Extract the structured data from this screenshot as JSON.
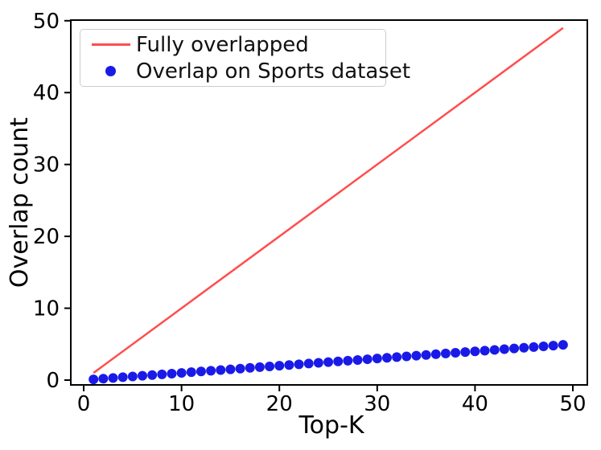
{
  "chart_data": {
    "type": "scatter",
    "title": "",
    "xlabel": "Top-K",
    "ylabel": "Overlap count",
    "xlim": [
      -1.32,
      51.48
    ],
    "ylim": [
      -0.67,
      50.09
    ],
    "xticks": [
      0,
      10,
      20,
      30,
      40,
      50
    ],
    "yticks": [
      0,
      10,
      20,
      30,
      40,
      50
    ],
    "grid": false,
    "legend_position": "upper left",
    "series": [
      {
        "name": "Fully overlapped",
        "type": "line",
        "color": "#FF4D4D",
        "x": [
          1,
          49
        ],
        "y": [
          1,
          49
        ]
      },
      {
        "name": "Overlap on Sports dataset",
        "type": "scatter",
        "color": "#1A1AE8",
        "x": [
          1,
          2,
          3,
          4,
          5,
          6,
          7,
          8,
          9,
          10,
          11,
          12,
          13,
          14,
          15,
          16,
          17,
          18,
          19,
          20,
          21,
          22,
          23,
          24,
          25,
          26,
          27,
          28,
          29,
          30,
          31,
          32,
          33,
          34,
          35,
          36,
          37,
          38,
          39,
          40,
          41,
          42,
          43,
          44,
          45,
          46,
          47,
          48,
          49
        ],
        "y": [
          0.1,
          0.2,
          0.3,
          0.4,
          0.5,
          0.6,
          0.7,
          0.8,
          0.9,
          1.0,
          1.1,
          1.2,
          1.3,
          1.4,
          1.5,
          1.6,
          1.7,
          1.8,
          1.9,
          2.0,
          2.1,
          2.2,
          2.3,
          2.4,
          2.5,
          2.6,
          2.7,
          2.8,
          2.9,
          3.0,
          3.1,
          3.2,
          3.3,
          3.4,
          3.5,
          3.6,
          3.7,
          3.8,
          3.9,
          4.0,
          4.1,
          4.2,
          4.3,
          4.4,
          4.5,
          4.6,
          4.7,
          4.8,
          4.9
        ]
      }
    ],
    "axis_color": "#000000",
    "background_color": "#ffffff"
  }
}
